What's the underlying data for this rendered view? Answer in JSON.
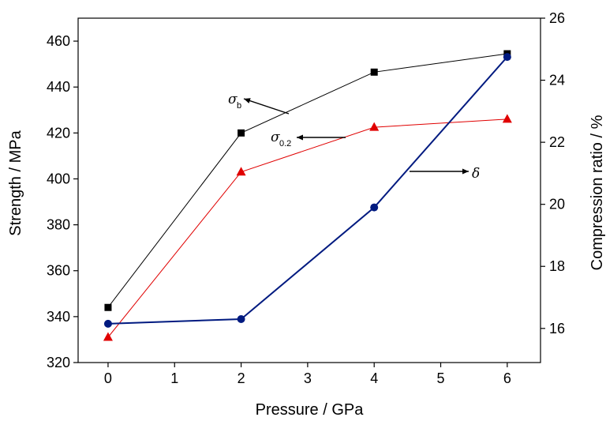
{
  "chart_data": {
    "type": "line",
    "xlabel": "Pressure / GPa",
    "ylabel_left": "Strength / MPa",
    "ylabel_right": "Compression ratio / %",
    "xlim": [
      -0.45,
      6.5
    ],
    "ylim_left": [
      320,
      470
    ],
    "ylim_right": [
      14.9,
      26.0
    ],
    "xticks": [
      "0",
      "1",
      "2",
      "3",
      "4",
      "5",
      "6"
    ],
    "yticks_left": [
      "320",
      "340",
      "360",
      "380",
      "400",
      "420",
      "440",
      "460"
    ],
    "yticks_right": [
      "16",
      "18",
      "20",
      "22",
      "24",
      "26"
    ],
    "x": [
      0,
      2,
      4,
      6
    ],
    "series": [
      {
        "name": "σb",
        "axis": "left",
        "marker": "square",
        "color": "#000000",
        "values": [
          344,
          420,
          446.5,
          454.5
        ]
      },
      {
        "name": "σ0.2",
        "axis": "left",
        "marker": "triangle",
        "color": "#e00000",
        "values": [
          331,
          403,
          422.5,
          426
        ]
      },
      {
        "name": "δ",
        "axis": "right",
        "marker": "circle",
        "color": "#001a80",
        "values": [
          16.15,
          16.3,
          19.9,
          24.75
        ]
      }
    ],
    "annotations": [
      {
        "text": "σ",
        "sub": "b",
        "series": "σb"
      },
      {
        "text": "σ",
        "sub": "0.2",
        "series": "σ0.2"
      },
      {
        "text": "δ",
        "sub": "",
        "series": "δ"
      }
    ],
    "grid": false
  }
}
